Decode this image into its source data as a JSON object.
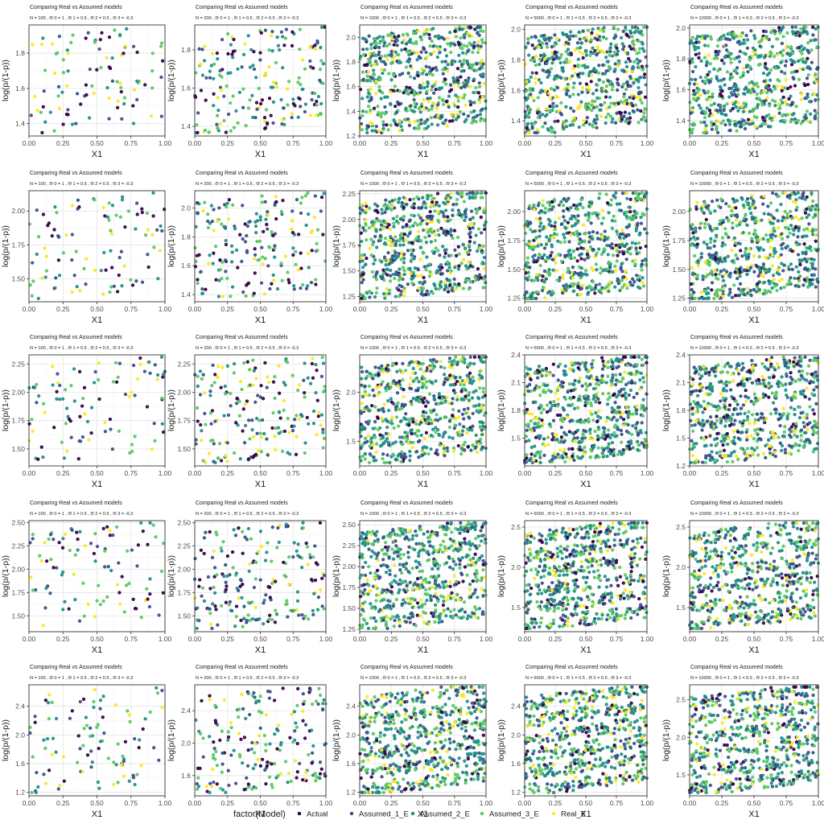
{
  "figure": {
    "legend": {
      "title": "factor(Model)",
      "entries": [
        {
          "label": "Actual",
          "color": "#440154"
        },
        {
          "label": "Assumed_1_E",
          "color": "#3B528B"
        },
        {
          "label": "Assumed_2_E",
          "color": "#21908C"
        },
        {
          "label": "Assumed_3_E",
          "color": "#5DC863"
        },
        {
          "label": "Real_E",
          "color": "#FDE725"
        }
      ]
    }
  },
  "chart_data": [
    {
      "type": "scatter",
      "title": "Comparing Real vs Assumed models",
      "subtitle": "N = 100 , Θ 0 = 1 , Θ 1 = 0.5 , Θ 2 = 0.5 , Θ 3 = -0.3",
      "xlabel": "X1",
      "ylabel": "log(p/(1-p))",
      "xlim": [
        0,
        1
      ],
      "ylim": [
        1.33,
        1.96
      ],
      "xticks": [
        0,
        0.25,
        0.5,
        0.75,
        1
      ],
      "xtick_labels": [
        "0.00",
        "0.25",
        "0.50",
        "0.75",
        "1.00"
      ],
      "yticks": [
        1.4,
        1.6,
        1.8
      ],
      "ytick_labels": [
        "1.4",
        "1.6",
        "1.8"
      ],
      "n_points": 100
    },
    {
      "type": "scatter",
      "title": "Comparing Real vs Assumed models",
      "subtitle": "N = 200 , Θ 0 = 1 , Θ 1 = 0.5 , Θ 2 = 0.5 , Θ 3 = -0.3",
      "xlabel": "X1",
      "ylabel": "log(p/(1-p))",
      "xlim": [
        0,
        1
      ],
      "ylim": [
        1.35,
        1.93
      ],
      "xticks": [
        0,
        0.25,
        0.5,
        0.75,
        1
      ],
      "xtick_labels": [
        "0.00",
        "0.25",
        "0.50",
        "0.75",
        "1.00"
      ],
      "yticks": [
        1.4,
        1.6,
        1.8
      ],
      "ytick_labels": [
        "1.4",
        "1.6",
        "1.8"
      ],
      "n_points": 200
    },
    {
      "type": "scatter",
      "title": "Comparing Real vs Assumed models",
      "subtitle": "N = 1000 , Θ 0 = 1 , Θ 1 = 0.5 , Θ 2 = 0.5 , Θ 3 = -0.3",
      "xlabel": "X1",
      "ylabel": "log(p/(1-p))",
      "xlim": [
        0,
        1
      ],
      "ylim": [
        1.2,
        2.1
      ],
      "xticks": [
        0,
        0.25,
        0.5,
        0.75,
        1
      ],
      "xtick_labels": [
        "0.00",
        "0.25",
        "0.50",
        "0.75",
        "1.00"
      ],
      "yticks": [
        1.2,
        1.4,
        1.6,
        1.8,
        2.0
      ],
      "ytick_labels": [
        "1.2",
        "1.4",
        "1.6",
        "1.8",
        "2.0"
      ],
      "n_points": 1000
    },
    {
      "type": "scatter",
      "title": "Comparing Real vs Assumed models",
      "subtitle": "N = 5000 , Θ 0 = 1 , Θ 1 = 0.5 , Θ 2 = 0.5 , Θ 3 = -0.3",
      "xlabel": "X1",
      "ylabel": "log(p/(1-p))",
      "xlim": [
        0,
        1
      ],
      "ylim": [
        1.3,
        2.03
      ],
      "xticks": [
        0,
        0.25,
        0.5,
        0.75,
        1
      ],
      "xtick_labels": [
        "0.00",
        "0.25",
        "0.50",
        "0.75",
        "1.00"
      ],
      "yticks": [
        1.4,
        1.6,
        1.8,
        2.0
      ],
      "ytick_labels": [
        "1.4",
        "1.6",
        "1.8",
        "2.0"
      ],
      "n_points": 5000
    },
    {
      "type": "scatter",
      "title": "Comparing Real vs Assumed models",
      "subtitle": "N = 10000 , Θ 0 = 1 , Θ 1 = 0.5 , Θ 2 = 0.5 , Θ 3 = -0.3",
      "xlabel": "X1",
      "ylabel": "log(p/(1-p))",
      "xlim": [
        0,
        1
      ],
      "ylim": [
        1.3,
        2.02
      ],
      "xticks": [
        0,
        0.25,
        0.5,
        0.75,
        1
      ],
      "xtick_labels": [
        "0.00",
        "0.25",
        "0.50",
        "0.75",
        "1.00"
      ],
      "yticks": [
        1.4,
        1.6,
        1.8,
        2.0
      ],
      "ytick_labels": [
        "1.4",
        "1.6",
        "1.8",
        "2.0"
      ],
      "n_points": 10000
    },
    {
      "type": "scatter",
      "title": "Comparing Real vs Assumed models",
      "subtitle": "N = 100 , Θ 0 = 1 , Θ 1 = 0.5 , Θ 2 = 0.5 , Θ 3 = -0.3",
      "xlabel": "X1",
      "ylabel": "log(p/(1-p))",
      "xlim": [
        0,
        1
      ],
      "ylim": [
        1.33,
        2.15
      ],
      "xticks": [
        0,
        0.25,
        0.5,
        0.75,
        1
      ],
      "xtick_labels": [
        "0.00",
        "0.25",
        "0.50",
        "0.75",
        "1.00"
      ],
      "yticks": [
        1.5,
        1.75,
        2.0
      ],
      "ytick_labels": [
        "1.50",
        "1.75",
        "2.00"
      ],
      "n_points": 100
    },
    {
      "type": "scatter",
      "title": "Comparing Real vs Assumed models",
      "subtitle": "N = 200 , Θ 0 = 1 , Θ 1 = 0.5 , Θ 2 = 0.5 , Θ 3 = -0.3",
      "xlabel": "X1",
      "ylabel": "log(p/(1-p))",
      "xlim": [
        0,
        1
      ],
      "ylim": [
        1.35,
        2.12
      ],
      "xticks": [
        0,
        0.25,
        0.5,
        0.75,
        1
      ],
      "xtick_labels": [
        "0.00",
        "0.25",
        "0.50",
        "0.75",
        "1.00"
      ],
      "yticks": [
        1.4,
        1.6,
        1.8,
        2.0
      ],
      "ytick_labels": [
        "1.4",
        "1.6",
        "1.8",
        "2.0"
      ],
      "n_points": 200
    },
    {
      "type": "scatter",
      "title": "Comparing Real vs Assumed models",
      "subtitle": "N = 1000 , Θ 0 = 1 , Θ 1 = 0.5 , Θ 2 = 0.5 , Θ 3 = -0.3",
      "xlabel": "X1",
      "ylabel": "log(p/(1-p))",
      "xlim": [
        0,
        1
      ],
      "ylim": [
        1.2,
        2.28
      ],
      "xticks": [
        0,
        0.25,
        0.5,
        0.75,
        1
      ],
      "xtick_labels": [
        "0.00",
        "0.25",
        "0.50",
        "0.75",
        "1.00"
      ],
      "yticks": [
        1.25,
        1.5,
        1.75,
        2.0,
        2.25
      ],
      "ytick_labels": [
        "1.25",
        "1.50",
        "1.75",
        "2.00",
        "2.25"
      ],
      "n_points": 1000
    },
    {
      "type": "scatter",
      "title": "Comparing Real vs Assumed models",
      "subtitle": "N = 5000 , Θ 0 = 1 , Θ 1 = 0.5 , Θ 2 = 0.5 , Θ 3 = -0.3",
      "xlabel": "X1",
      "ylabel": "log(p/(1-p))",
      "xlim": [
        0,
        1
      ],
      "ylim": [
        1.22,
        2.18
      ],
      "xticks": [
        0,
        0.25,
        0.5,
        0.75,
        1
      ],
      "xtick_labels": [
        "0.00",
        "0.25",
        "0.50",
        "0.75",
        "1.00"
      ],
      "yticks": [
        1.25,
        1.5,
        1.75,
        2.0
      ],
      "ytick_labels": [
        "1.25",
        "1.50",
        "1.75",
        "2.00"
      ],
      "n_points": 5000
    },
    {
      "type": "scatter",
      "title": "Comparing Real vs Assumed models",
      "subtitle": "N = 10000 , Θ 0 = 1 , Θ 1 = 0.5 , Θ 2 = 0.5 , Θ 3 = -0.3",
      "xlabel": "X1",
      "ylabel": "log(p/(1-p))",
      "xlim": [
        0,
        1
      ],
      "ylim": [
        1.22,
        2.18
      ],
      "xticks": [
        0,
        0.25,
        0.5,
        0.75,
        1
      ],
      "xtick_labels": [
        "0.00",
        "0.25",
        "0.50",
        "0.75",
        "1.00"
      ],
      "yticks": [
        1.25,
        1.5,
        1.75,
        2.0
      ],
      "ytick_labels": [
        "1.25",
        "1.50",
        "1.75",
        "2.00"
      ],
      "n_points": 10000
    },
    {
      "type": "scatter",
      "title": "Comparing Real vs Assumed models",
      "subtitle": "N = 100 , Θ 0 = 1 , Θ 1 = 0.5 , Θ 2 = 0.5 , Θ 3 = -0.3",
      "xlabel": "X1",
      "ylabel": "log(p/(1-p))",
      "xlim": [
        0,
        1
      ],
      "ylim": [
        1.35,
        2.33
      ],
      "xticks": [
        0,
        0.25,
        0.5,
        0.75,
        1
      ],
      "xtick_labels": [
        "0.00",
        "0.25",
        "0.50",
        "0.75",
        "1.00"
      ],
      "yticks": [
        1.5,
        1.75,
        2.0,
        2.25
      ],
      "ytick_labels": [
        "1.50",
        "1.75",
        "2.00",
        "2.25"
      ],
      "n_points": 100
    },
    {
      "type": "scatter",
      "title": "Comparing Real vs Assumed models",
      "subtitle": "N = 200 , Θ 0 = 1 , Θ 1 = 0.5 , Θ 2 = 0.5 , Θ 3 = -0.3",
      "xlabel": "X1",
      "ylabel": "log(p/(1-p))",
      "xlim": [
        0,
        1
      ],
      "ylim": [
        1.35,
        2.33
      ],
      "xticks": [
        0,
        0.25,
        0.5,
        0.75,
        1
      ],
      "xtick_labels": [
        "0.00",
        "0.25",
        "0.50",
        "0.75",
        "1.00"
      ],
      "yticks": [
        1.5,
        1.75,
        2.0,
        2.25
      ],
      "ytick_labels": [
        "1.50",
        "1.75",
        "2.00",
        "2.25"
      ],
      "n_points": 200
    },
    {
      "type": "scatter",
      "title": "Comparing Real vs Assumed models",
      "subtitle": "N = 1000 , Θ 0 = 1 , Θ 1 = 0.5 , Θ 2 = 0.5 , Θ 3 = -0.3",
      "xlabel": "X1",
      "ylabel": "log(p/(1-p))",
      "xlim": [
        0,
        1
      ],
      "ylim": [
        1.25,
        2.38
      ],
      "xticks": [
        0,
        0.25,
        0.5,
        0.75,
        1
      ],
      "xtick_labels": [
        "0.00",
        "0.25",
        "0.50",
        "0.75",
        "1.00"
      ],
      "yticks": [
        1.5,
        2.0
      ],
      "ytick_labels": [
        "1.5",
        "2.0"
      ],
      "n_points": 1000
    },
    {
      "type": "scatter",
      "title": "Comparing Real vs Assumed models",
      "subtitle": "N = 5000 , Θ 0 = 1 , Θ 1 = 0.5 , Θ 2 = 0.5 , Θ 3 = -0.3",
      "xlabel": "X1",
      "ylabel": "log(p/(1-p))",
      "xlim": [
        0,
        1
      ],
      "ylim": [
        1.2,
        2.4
      ],
      "xticks": [
        0,
        0.25,
        0.5,
        0.75,
        1
      ],
      "xtick_labels": [
        "0.00",
        "0.25",
        "0.50",
        "0.75",
        "1.00"
      ],
      "yticks": [
        1.5,
        1.8,
        2.1,
        2.4
      ],
      "ytick_labels": [
        "1.5",
        "1.8",
        "2.1",
        "2.4"
      ],
      "n_points": 5000
    },
    {
      "type": "scatter",
      "title": "Comparing Real vs Assumed models",
      "subtitle": "N = 10000 , Θ 0 = 1 , Θ 1 = 0.5 , Θ 2 = 0.5 , Θ 3 = -0.3",
      "xlabel": "X1",
      "ylabel": "log(p/(1-p))",
      "xlim": [
        0,
        1
      ],
      "ylim": [
        1.2,
        2.4
      ],
      "xticks": [
        0,
        0.25,
        0.5,
        0.75,
        1
      ],
      "xtick_labels": [
        "0.00",
        "0.25",
        "0.50",
        "0.75",
        "1.00"
      ],
      "yticks": [
        1.2,
        1.5,
        1.8,
        2.1,
        2.4
      ],
      "ytick_labels": [
        "1.2",
        "1.5",
        "1.8",
        "2.1",
        "2.4"
      ],
      "n_points": 10000
    },
    {
      "type": "scatter",
      "title": "Comparing Real vs Assumed models",
      "subtitle": "N = 100 , Θ 0 = 1 , Θ 1 = 0.5 , Θ 2 = 0.5 , Θ 3 = -0.3",
      "xlabel": "X1",
      "ylabel": "log(p/(1-p))",
      "xlim": [
        0,
        1
      ],
      "ylim": [
        1.33,
        2.52
      ],
      "xticks": [
        0,
        0.25,
        0.5,
        0.75,
        1
      ],
      "xtick_labels": [
        "0.00",
        "0.25",
        "0.50",
        "0.75",
        "1.00"
      ],
      "yticks": [
        1.5,
        1.75,
        2.0,
        2.25,
        2.5
      ],
      "ytick_labels": [
        "1.50",
        "1.75",
        "2.00",
        "2.25",
        "2.50"
      ],
      "n_points": 100
    },
    {
      "type": "scatter",
      "title": "Comparing Real vs Assumed models",
      "subtitle": "N = 200 , Θ 0 = 1 , Θ 1 = 0.5 , Θ 2 = 0.5 , Θ 3 = -0.3",
      "xlabel": "X1",
      "ylabel": "log(p/(1-p))",
      "xlim": [
        0,
        1
      ],
      "ylim": [
        1.33,
        2.52
      ],
      "xticks": [
        0,
        0.25,
        0.5,
        0.75,
        1
      ],
      "xtick_labels": [
        "0.00",
        "0.25",
        "0.50",
        "0.75",
        "1.00"
      ],
      "yticks": [
        1.5,
        1.75,
        2.0,
        2.25,
        2.5
      ],
      "ytick_labels": [
        "1.50",
        "1.75",
        "2.00",
        "2.25",
        "2.50"
      ],
      "n_points": 200
    },
    {
      "type": "scatter",
      "title": "Comparing Real vs Assumed models",
      "subtitle": "N = 1000 , Θ 0 = 1 , Θ 1 = 0.5 , Θ 2 = 0.5 , Θ 3 = -0.3",
      "xlabel": "X1",
      "ylabel": "log(p/(1-p))",
      "xlim": [
        0,
        1
      ],
      "ylim": [
        1.22,
        2.55
      ],
      "xticks": [
        0,
        0.25,
        0.5,
        0.75,
        1
      ],
      "xtick_labels": [
        "0.00",
        "0.25",
        "0.50",
        "0.75",
        "1.00"
      ],
      "yticks": [
        1.25,
        1.5,
        1.75,
        2.0,
        2.25,
        2.5
      ],
      "ytick_labels": [
        "1.25",
        "1.50",
        "1.75",
        "2.00",
        "2.25",
        "2.50"
      ],
      "n_points": 1000
    },
    {
      "type": "scatter",
      "title": "Comparing Real vs Assumed models",
      "subtitle": "N = 5000 , Θ 0 = 1 , Θ 1 = 0.5 , Θ 2 = 0.5 , Θ 3 = -0.3",
      "xlabel": "X1",
      "ylabel": "log(p/(1-p))",
      "xlim": [
        0,
        1
      ],
      "ylim": [
        1.2,
        2.58
      ],
      "xticks": [
        0,
        0.25,
        0.5,
        0.75,
        1
      ],
      "xtick_labels": [
        "0.00",
        "0.25",
        "0.50",
        "0.75",
        "1.00"
      ],
      "yticks": [
        1.5,
        2.0,
        2.5
      ],
      "ytick_labels": [
        "1.5",
        "2.0",
        "2.5"
      ],
      "n_points": 5000
    },
    {
      "type": "scatter",
      "title": "Comparing Real vs Assumed models",
      "subtitle": "N = 10000 , Θ 0 = 1 , Θ 1 = 0.5 , Θ 2 = 0.5 , Θ 3 = -0.3",
      "xlabel": "X1",
      "ylabel": "log(p/(1-p))",
      "xlim": [
        0,
        1
      ],
      "ylim": [
        1.2,
        2.58
      ],
      "xticks": [
        0,
        0.25,
        0.5,
        0.75,
        1
      ],
      "xtick_labels": [
        "0.00",
        "0.25",
        "0.50",
        "0.75",
        "1.00"
      ],
      "yticks": [
        1.5,
        2.0,
        2.5
      ],
      "ytick_labels": [
        "1.5",
        "2.0",
        "2.5"
      ],
      "n_points": 10000
    },
    {
      "type": "scatter",
      "title": "Comparing Real vs Assumed models",
      "subtitle": "N = 100 , Θ 0 = 1 , Θ 1 = 0.5 , Θ 2 = 0.5 , Θ 3 = -0.3",
      "xlabel": "X1",
      "ylabel": "log(p/(1-p))",
      "xlim": [
        0,
        1
      ],
      "ylim": [
        1.15,
        2.7
      ],
      "xticks": [
        0,
        0.25,
        0.5,
        0.75,
        1
      ],
      "xtick_labels": [
        "0.00",
        "0.25",
        "0.50",
        "0.75",
        "1.00"
      ],
      "yticks": [
        1.2,
        1.6,
        2.0,
        2.4
      ],
      "ytick_labels": [
        "1.2",
        "1.6",
        "2.0",
        "2.4"
      ],
      "n_points": 100
    },
    {
      "type": "scatter",
      "title": "Comparing Real vs Assumed models",
      "subtitle": "N = 200 , Θ 0 = 1 , Θ 1 = 0.5 , Θ 2 = 0.5 , Θ 3 = -0.3",
      "xlabel": "X1",
      "ylabel": "log(p/(1-p))",
      "xlim": [
        0,
        1
      ],
      "ylim": [
        1.35,
        2.72
      ],
      "xticks": [
        0,
        0.25,
        0.5,
        0.75,
        1
      ],
      "xtick_labels": [
        "0.00",
        "0.25",
        "0.50",
        "0.75",
        "1.00"
      ],
      "yticks": [
        1.6,
        2.0,
        2.4
      ],
      "ytick_labels": [
        "1.6",
        "2.0",
        "2.4"
      ],
      "n_points": 200
    },
    {
      "type": "scatter",
      "title": "Comparing Real vs Assumed models",
      "subtitle": "N = 1000 , Θ 0 = 1 , Θ 1 = 0.5 , Θ 2 = 0.5 , Θ 3 = -0.3",
      "xlabel": "X1",
      "ylabel": "log(p/(1-p))",
      "xlim": [
        0,
        1
      ],
      "ylim": [
        1.15,
        2.7
      ],
      "xticks": [
        0,
        0.25,
        0.5,
        0.75,
        1
      ],
      "xtick_labels": [
        "0.00",
        "0.25",
        "0.50",
        "0.75",
        "1.00"
      ],
      "yticks": [
        1.2,
        1.6,
        2.0,
        2.4
      ],
      "ytick_labels": [
        "1.2",
        "1.6",
        "2.0",
        "2.4"
      ],
      "n_points": 1000
    },
    {
      "type": "scatter",
      "title": "Comparing Real vs Assumed models",
      "subtitle": "N = 5000 , Θ 0 = 1 , Θ 1 = 0.5 , Θ 2 = 0.5 , Θ 3 = -0.3",
      "xlabel": "X1",
      "ylabel": "log(p/(1-p))",
      "xlim": [
        0,
        1
      ],
      "ylim": [
        1.15,
        2.7
      ],
      "xticks": [
        0,
        0.25,
        0.5,
        0.75,
        1
      ],
      "xtick_labels": [
        "0.00",
        "0.25",
        "0.50",
        "0.75",
        "1.00"
      ],
      "yticks": [
        1.2,
        1.6,
        2.0,
        2.4
      ],
      "ytick_labels": [
        "1.2",
        "1.6",
        "2.0",
        "2.4"
      ],
      "n_points": 5000
    },
    {
      "type": "scatter",
      "title": "Comparing Real vs Assumed models",
      "subtitle": "N = 10000 , Θ 0 = 1 , Θ 1 = 0.5 , Θ 2 = 0.5 , Θ 3 = -0.3",
      "xlabel": "X1",
      "ylabel": "log(p/(1-p))",
      "xlim": [
        0,
        1
      ],
      "ylim": [
        1.22,
        2.7
      ],
      "xticks": [
        0,
        0.25,
        0.5,
        0.75,
        1
      ],
      "xtick_labels": [
        "0.00",
        "0.25",
        "0.50",
        "0.75",
        "1.00"
      ],
      "yticks": [
        1.5,
        2.0,
        2.5
      ],
      "ytick_labels": [
        "1.5",
        "2.0",
        "2.5"
      ],
      "n_points": 10000
    }
  ]
}
